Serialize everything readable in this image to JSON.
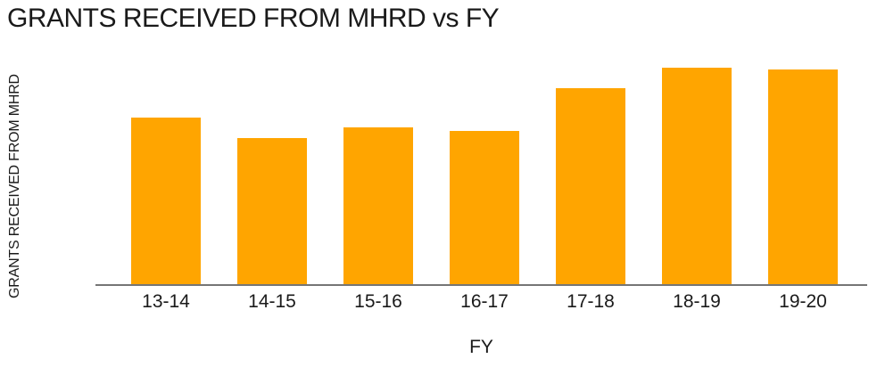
{
  "chart_data": {
    "type": "bar",
    "title": "GRANTS RECEIVED FROM MHRD vs FY",
    "xlabel": "FY",
    "ylabel": "GRANTS RECEIVED FROM MHRD",
    "categories": [
      "13-14",
      "14-15",
      "15-16",
      "16-17",
      "17-18",
      "18-19",
      "19-20"
    ],
    "values": [
      450,
      395,
      425,
      415,
      530,
      585,
      580
    ],
    "ylim": [
      0,
      600
    ],
    "yticks": [
      0,
      200,
      400,
      600
    ],
    "grid": false,
    "legend": false,
    "bar_color": "#FFA500",
    "axis_line_color": "#767676",
    "text_color": "#1a1a1a",
    "background_color": "#ffffff"
  }
}
